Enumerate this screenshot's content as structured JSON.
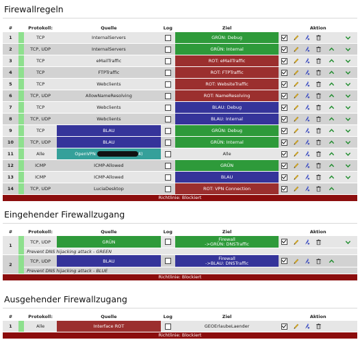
{
  "sections": {
    "rules": {
      "title": "Firewallregeln",
      "headers": {
        "num": "#",
        "proto": "Protokoll:",
        "source": "Quelle",
        "log": "Log",
        "target": "Ziel",
        "action": "Aktion"
      },
      "rows": [
        {
          "n": "1",
          "proto": "TCP",
          "src": "InternalServers",
          "dst": "GRÜN: Debug"
        },
        {
          "n": "2",
          "proto": "TCP, UDP",
          "src": "InternalServers",
          "dst": "GRÜN: Internal"
        },
        {
          "n": "3",
          "proto": "TCP",
          "src": "eMailTraffic",
          "dst": "ROT: eMailTraffic"
        },
        {
          "n": "4",
          "proto": "TCP",
          "src": "FTPTraffic",
          "dst": "ROT: FTPTraffic"
        },
        {
          "n": "5",
          "proto": "TCP",
          "src": "Webclients",
          "dst": "ROT: WebsiteTraffic"
        },
        {
          "n": "6",
          "proto": "TCP, UDP",
          "src": "AllowNameResolving",
          "dst": "ROT: NameResolving"
        },
        {
          "n": "7",
          "proto": "TCP",
          "src": "Webclients",
          "dst": "BLAU: Debug"
        },
        {
          "n": "8",
          "proto": "TCP, UDP",
          "src": "Webclients",
          "dst": "BLAU: Internal"
        },
        {
          "n": "9",
          "proto": "TCP",
          "src": "BLAU",
          "dst": "GRÜN: Debug"
        },
        {
          "n": "10",
          "proto": "TCP, UDP",
          "src": "BLAU",
          "dst": "GRÜN: Internal"
        },
        {
          "n": "11",
          "proto": "Alle",
          "src": "OpenVPN",
          "src_suffix": "4)",
          "dst": "Alle"
        },
        {
          "n": "12",
          "proto": "ICMP",
          "src": "ICMP-Allowed",
          "dst": "GRÜN"
        },
        {
          "n": "13",
          "proto": "ICMP",
          "src": "ICMP-Allowed",
          "dst": "BLAU"
        },
        {
          "n": "14",
          "proto": "TCP, UDP",
          "src": "LuciaDesktop",
          "dst": "ROT: VPN Connection"
        }
      ],
      "policy": "Richtlinie: Blockiert"
    },
    "incoming": {
      "title": "Eingehender Firewallzugang",
      "headers": {
        "num": "#",
        "proto": "Protokoll:",
        "source": "Quelle",
        "log": "Log",
        "target": "Ziel",
        "action": "Aktion"
      },
      "rows": [
        {
          "n": "1",
          "proto": "TCP, UDP",
          "src": "GRÜN",
          "dst1": "Firewall",
          "dst2": "->GRÜN: DNSTraffic",
          "note": "Prevent DNS hijacking attack - GREEN"
        },
        {
          "n": "2",
          "proto": "TCP, UDP",
          "src": "BLAU",
          "dst1": "Firewall",
          "dst2": "->BLAU: DNSTraffic",
          "note": "Prevent DNS hijacking attack - BLUE"
        }
      ],
      "policy": "Richtlinie: Blockiert"
    },
    "outgoing": {
      "title": "Ausgehender Firewallzugang",
      "headers": {
        "num": "#",
        "proto": "Protokoll:",
        "source": "Quelle",
        "log": "Log",
        "target": "Ziel",
        "action": "Aktion"
      },
      "rows": [
        {
          "n": "1",
          "proto": "Alle",
          "src": "Interface ROT",
          "dst": "GEOErlaubeLaender"
        }
      ],
      "policy": "Richtlinie: Blockiert"
    }
  },
  "colors": {
    "green": "#2e9a3a",
    "red": "#9b2f2e",
    "blue": "#35349a",
    "teal": "#35a09a",
    "policy": "#8b0d0d",
    "active": "#8ee08e"
  }
}
